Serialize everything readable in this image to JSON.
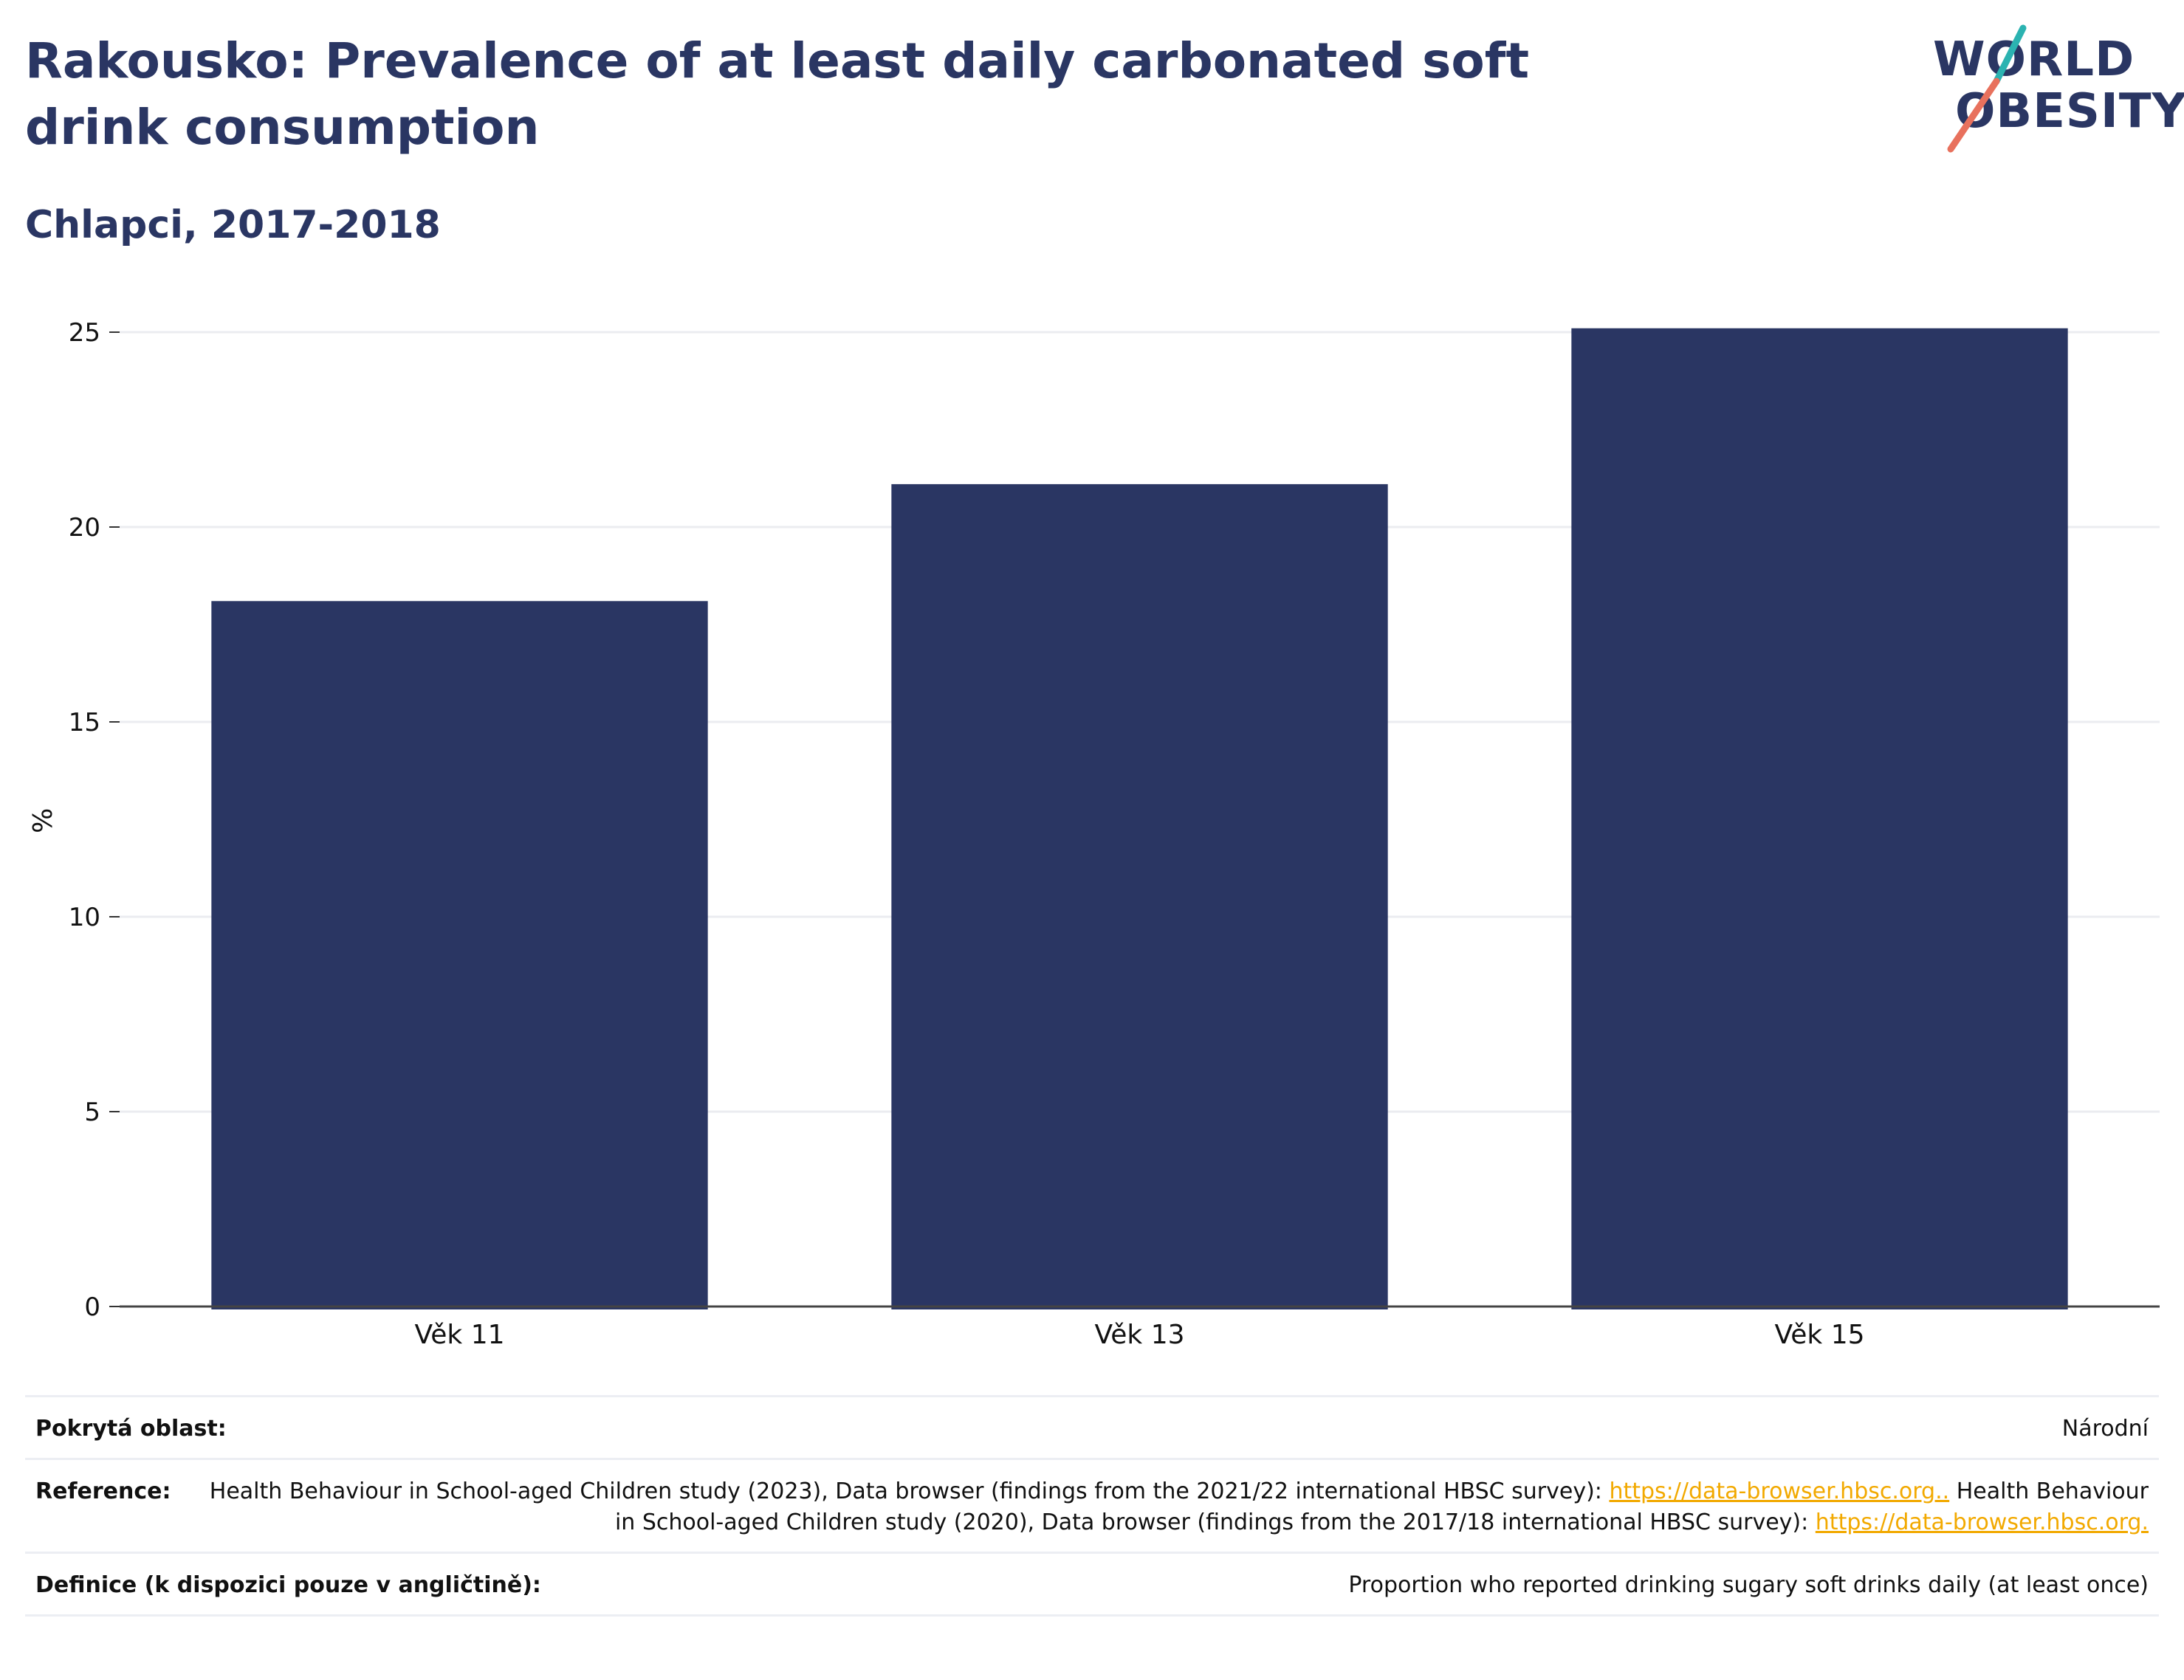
{
  "header": {
    "title": "Rakousko: Prevalence of at least daily carbonated soft drink consumption",
    "subtitle": "Chlapci, 2017-2018"
  },
  "logo": {
    "line1": "WORLD",
    "line2": "OBESITY"
  },
  "chart_data": {
    "type": "bar",
    "categories": [
      "Věk 11",
      "Věk 13",
      "Věk 15"
    ],
    "values": [
      18.1,
      21.1,
      25.1
    ],
    "ylabel": "%",
    "ylim": [
      0,
      25.5
    ],
    "yticks": [
      0,
      5,
      10,
      15,
      20,
      25
    ],
    "grid": true,
    "bar_color": "#2a3663"
  },
  "info": {
    "coverage": {
      "label": "Pokrytá oblast:",
      "value": "Národní"
    },
    "reference": {
      "label": "Reference:",
      "text1": "Health Behaviour in School-aged Children study (2023), Data browser (findings from the 2021/22 international HBSC survey):",
      "link1": "https://data-browser.hbsc.org..",
      "text2": " Health Behaviour in School-aged Children study (2020), Data browser (findings from the 2017/18 international HBSC survey): ",
      "link2": "https://data-browser.hbsc.org."
    },
    "definition": {
      "label": "Definice (k dispozici pouze v angličtině):",
      "value": "Proportion who reported drinking sugary soft drinks daily (at least once)"
    }
  },
  "colors": {
    "title": "#2a3663",
    "bar": "#2a3663",
    "link": "#f2a900",
    "logo_teal": "#2bb3b1",
    "logo_coral": "#e8715d"
  }
}
